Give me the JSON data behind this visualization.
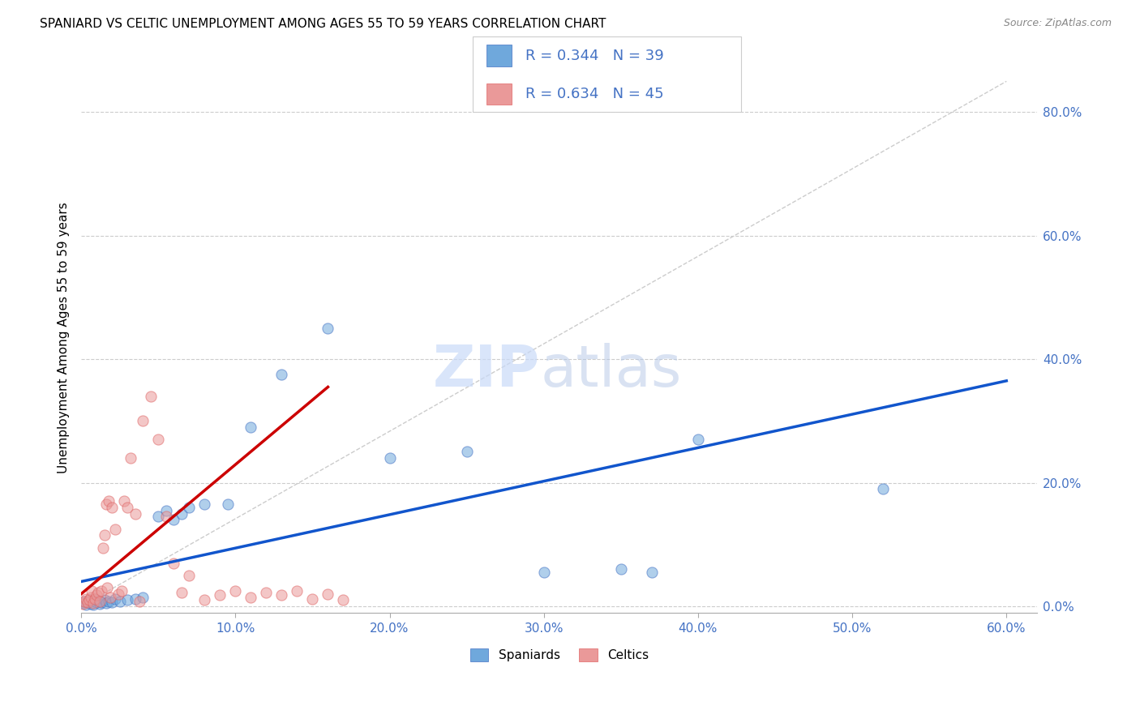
{
  "title": "SPANIARD VS CELTIC UNEMPLOYMENT AMONG AGES 55 TO 59 YEARS CORRELATION CHART",
  "source": "Source: ZipAtlas.com",
  "ylabel": "Unemployment Among Ages 55 to 59 years",
  "xlim": [
    0.0,
    0.62
  ],
  "ylim": [
    -0.01,
    0.88
  ],
  "x_ticks": [
    0.0,
    0.1,
    0.2,
    0.3,
    0.4,
    0.5,
    0.6
  ],
  "y_ticks_right": [
    0.0,
    0.2,
    0.4,
    0.6,
    0.8
  ],
  "spaniard_color": "#6fa8dc",
  "celtic_color": "#ea9999",
  "spaniard_edge_color": "#4472c4",
  "celtic_edge_color": "#e06666",
  "spaniard_line_color": "#1155cc",
  "celtic_line_color": "#cc0000",
  "R_spaniard": 0.344,
  "N_spaniard": 39,
  "R_celtic": 0.634,
  "N_celtic": 45,
  "watermark_zip": "ZIP",
  "watermark_atlas": "atlas",
  "legend_spaniard": "Spaniards",
  "legend_celtic": "Celtics",
  "spaniard_x": [
    0.001,
    0.002,
    0.003,
    0.004,
    0.005,
    0.006,
    0.007,
    0.008,
    0.009,
    0.01,
    0.011,
    0.012,
    0.013,
    0.015,
    0.016,
    0.018,
    0.02,
    0.022,
    0.025,
    0.03,
    0.035,
    0.04,
    0.05,
    0.055,
    0.06,
    0.065,
    0.07,
    0.08,
    0.095,
    0.11,
    0.13,
    0.16,
    0.2,
    0.25,
    0.3,
    0.37,
    0.4,
    0.52,
    0.35
  ],
  "spaniard_y": [
    0.005,
    0.008,
    0.003,
    0.006,
    0.01,
    0.004,
    0.008,
    0.003,
    0.012,
    0.006,
    0.009,
    0.004,
    0.007,
    0.01,
    0.005,
    0.008,
    0.006,
    0.012,
    0.008,
    0.01,
    0.012,
    0.015,
    0.145,
    0.155,
    0.14,
    0.15,
    0.16,
    0.165,
    0.165,
    0.29,
    0.375,
    0.45,
    0.24,
    0.25,
    0.055,
    0.055,
    0.27,
    0.19,
    0.06
  ],
  "celtic_x": [
    0.001,
    0.002,
    0.003,
    0.004,
    0.005,
    0.006,
    0.007,
    0.008,
    0.009,
    0.01,
    0.011,
    0.012,
    0.013,
    0.014,
    0.015,
    0.016,
    0.017,
    0.018,
    0.019,
    0.02,
    0.022,
    0.024,
    0.026,
    0.028,
    0.03,
    0.032,
    0.035,
    0.038,
    0.04,
    0.045,
    0.05,
    0.055,
    0.06,
    0.065,
    0.07,
    0.08,
    0.09,
    0.1,
    0.11,
    0.12,
    0.13,
    0.14,
    0.15,
    0.16,
    0.17
  ],
  "celtic_y": [
    0.004,
    0.008,
    0.012,
    0.006,
    0.01,
    0.015,
    0.025,
    0.005,
    0.012,
    0.018,
    0.022,
    0.008,
    0.025,
    0.095,
    0.115,
    0.165,
    0.03,
    0.17,
    0.015,
    0.16,
    0.125,
    0.02,
    0.025,
    0.17,
    0.16,
    0.24,
    0.15,
    0.008,
    0.3,
    0.34,
    0.27,
    0.145,
    0.07,
    0.022,
    0.05,
    0.01,
    0.018,
    0.025,
    0.015,
    0.022,
    0.018,
    0.025,
    0.012,
    0.02,
    0.01
  ],
  "spaniard_line_x": [
    0.0,
    0.6
  ],
  "spaniard_line_y": [
    0.04,
    0.365
  ],
  "celtic_line_x": [
    0.0,
    0.16
  ],
  "celtic_line_y": [
    0.02,
    0.355
  ],
  "diag_line_x": [
    0.0,
    0.6
  ],
  "diag_line_y": [
    0.0,
    0.85
  ]
}
